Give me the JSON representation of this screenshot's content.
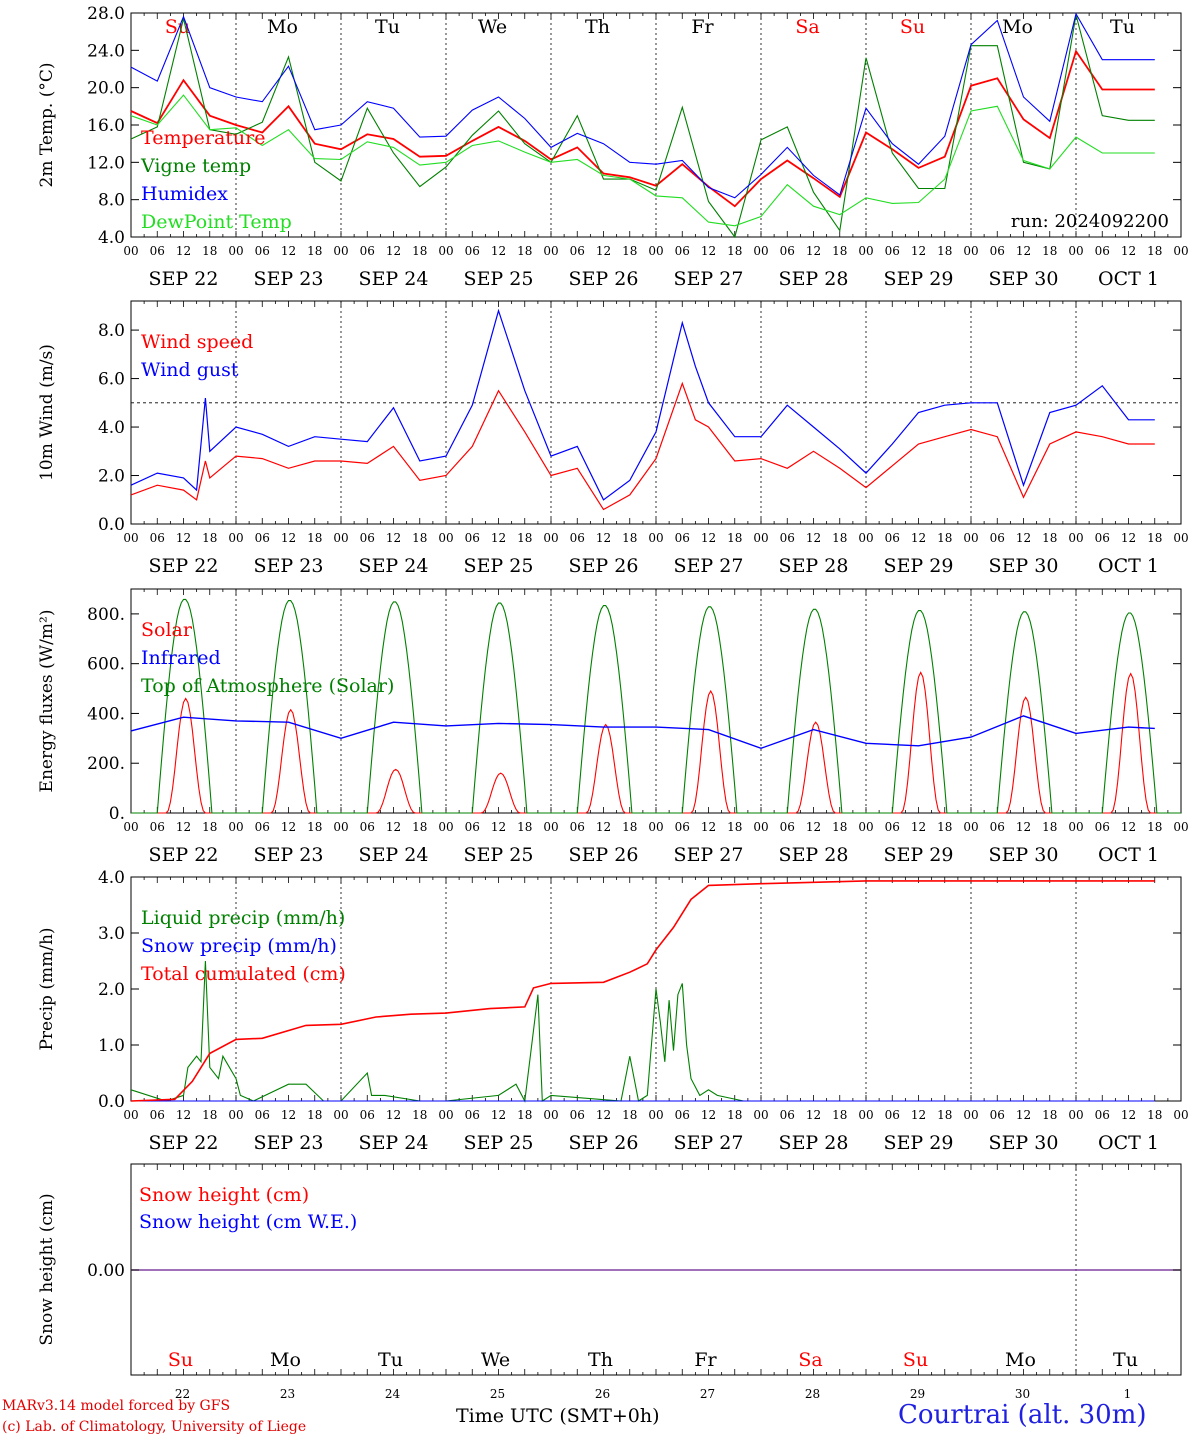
{
  "run_label": "run: 2024092200",
  "x_title": "Time UTC (SMT+0h)",
  "credits": [
    "MARv3.14 model forced by GFS",
    "(c) Lab. of Climatology, University of Liege"
  ],
  "station": "Courtrai (alt. 30m)",
  "colors": {
    "red": "#ff0000",
    "green": "#008000",
    "blue": "#0000ff",
    "light_green": "#22dd22",
    "purple": "#8040a0",
    "weekend": "#ff0000",
    "weekday": "#000000"
  },
  "time_axis": {
    "hour_ticks": [
      "00",
      "06",
      "12",
      "18"
    ],
    "dates": [
      "SEP 22",
      "SEP 23",
      "SEP 24",
      "SEP 25",
      "SEP 26",
      "SEP 27",
      "SEP 28",
      "SEP 29",
      "SEP 30",
      "OCT  1"
    ],
    "weekdays": [
      "Su",
      "Mo",
      "Tu",
      "We",
      "Th",
      "Fr",
      "Sa",
      "Su",
      "Mo",
      "Tu"
    ],
    "weekend_flags": [
      true,
      false,
      false,
      false,
      false,
      false,
      true,
      true,
      false,
      false
    ],
    "day_numbers": [
      "22",
      "23",
      "24",
      "25",
      "26",
      "27",
      "28",
      "29",
      "30",
      "1"
    ]
  },
  "chart_data": [
    {
      "type": "line",
      "ylabel": "2m Temp. (°C)",
      "ylim": [
        4,
        28
      ],
      "yticks": [
        "4.0",
        "8.0",
        "12.0",
        "16.0",
        "20.0",
        "24.0",
        "28.0"
      ],
      "x_hours": [
        0,
        6,
        12,
        18,
        24,
        30,
        36,
        42,
        48,
        54,
        60,
        66,
        72,
        78,
        84,
        90,
        96,
        102,
        108,
        114,
        120,
        126,
        132,
        138,
        144,
        150,
        156,
        162,
        168,
        174,
        180,
        186,
        192,
        198,
        204,
        210,
        216,
        222,
        228,
        234
      ],
      "series": [
        {
          "name": "Temperature",
          "color": "red",
          "values": [
            17.5,
            16.2,
            20.8,
            17.0,
            16.0,
            15.2,
            18.0,
            14.0,
            13.4,
            15.0,
            14.5,
            12.6,
            12.7,
            14.3,
            15.8,
            14.3,
            12.3,
            13.6,
            10.8,
            10.4,
            9.5,
            11.8,
            9.4,
            7.3,
            10.2,
            12.2,
            10.3,
            8.3,
            15.2,
            13.4,
            11.4,
            12.6,
            20.2,
            21.0,
            16.6,
            14.6,
            23.9,
            19.8,
            19.8,
            19.8
          ]
        },
        {
          "name": "Vigne temp",
          "color": "green",
          "values": [
            14.5,
            15.8,
            27.4,
            15.5,
            15.0,
            16.3,
            23.3,
            12.0,
            10.0,
            17.8,
            13.0,
            9.4,
            11.5,
            14.9,
            17.5,
            14.0,
            12.0,
            17.0,
            10.2,
            10.2,
            9.0,
            17.9,
            7.8,
            4.0,
            14.4,
            15.8,
            8.8,
            4.7,
            23.2,
            13.0,
            9.2,
            9.2,
            24.5,
            24.5,
            12.0,
            11.3,
            27.8,
            17.0,
            16.5,
            16.5
          ]
        },
        {
          "name": "Humidex",
          "color": "blue",
          "values": [
            22.2,
            20.7,
            27.6,
            20.0,
            19.0,
            18.5,
            22.3,
            15.5,
            16.0,
            18.5,
            17.8,
            14.7,
            14.8,
            17.6,
            19.0,
            16.7,
            13.6,
            15.1,
            14.0,
            12.0,
            11.8,
            12.2,
            9.3,
            8.2,
            10.7,
            13.6,
            10.6,
            8.5,
            17.8,
            14.0,
            11.8,
            14.8,
            24.6,
            27.2,
            19.0,
            16.4,
            27.9,
            23.0,
            23.0,
            23.0
          ]
        },
        {
          "name": "DewPoint Temp",
          "color": "light_green",
          "values": [
            17.0,
            16.0,
            19.2,
            15.5,
            15.7,
            13.8,
            15.5,
            12.4,
            12.3,
            14.2,
            13.6,
            11.7,
            12.0,
            13.8,
            14.3,
            13.1,
            12.0,
            12.3,
            10.6,
            10.2,
            8.4,
            8.2,
            5.6,
            5.2,
            6.2,
            9.6,
            7.3,
            6.4,
            8.2,
            7.6,
            7.7,
            10.2,
            17.5,
            18.0,
            12.2,
            11.3,
            14.7,
            13.0,
            13.0,
            13.0
          ]
        }
      ]
    },
    {
      "type": "line",
      "ylabel": "10m Wind (m/s)",
      "ylim": [
        0,
        9.2
      ],
      "yticks": [
        "0.0",
        "2.0",
        "4.0",
        "6.0",
        "8.0"
      ],
      "ref_line": 5,
      "x_hours": [
        0,
        6,
        12,
        15,
        17,
        18,
        24,
        30,
        36,
        42,
        48,
        54,
        60,
        66,
        72,
        78,
        84,
        90,
        96,
        102,
        108,
        114,
        120,
        126,
        129,
        132,
        138,
        144,
        150,
        156,
        162,
        168,
        174,
        180,
        186,
        192,
        198,
        204,
        210,
        216,
        222,
        228,
        234
      ],
      "series": [
        {
          "name": "Wind speed",
          "color": "red",
          "values": [
            1.2,
            1.6,
            1.4,
            1.0,
            2.6,
            1.9,
            2.8,
            2.7,
            2.3,
            2.6,
            2.6,
            2.5,
            3.2,
            1.8,
            2.0,
            3.2,
            5.5,
            3.8,
            2.0,
            2.3,
            0.6,
            1.2,
            2.7,
            5.8,
            4.3,
            4.0,
            2.6,
            2.7,
            2.3,
            3.0,
            2.3,
            1.5,
            2.4,
            3.3,
            3.6,
            3.9,
            3.6,
            1.1,
            3.3,
            3.8,
            3.6,
            3.3,
            3.3
          ]
        },
        {
          "name": "Wind gust",
          "color": "blue",
          "values": [
            1.6,
            2.1,
            1.9,
            1.4,
            5.2,
            3.0,
            4.0,
            3.7,
            3.2,
            3.6,
            3.5,
            3.4,
            4.8,
            2.6,
            2.8,
            4.9,
            8.8,
            5.5,
            2.8,
            3.2,
            1.0,
            1.8,
            3.8,
            8.3,
            6.5,
            5.0,
            3.6,
            3.6,
            4.9,
            4.0,
            3.1,
            2.1,
            3.3,
            4.6,
            4.9,
            5.0,
            5.0,
            1.6,
            4.6,
            4.9,
            5.7,
            4.3,
            4.3
          ]
        }
      ]
    },
    {
      "type": "line",
      "ylabel": "Energy fluxes (W/m²)",
      "ylim": [
        0,
        900
      ],
      "yticks": [
        "0.",
        "200.",
        "400.",
        "600.",
        "800."
      ],
      "diurnal_series": [
        {
          "name": "Solar",
          "color": "red",
          "peaks_by_day": [
            460,
            415,
            175,
            160,
            355,
            490,
            365,
            565,
            465,
            560
          ]
        },
        {
          "name": "Top of Atmosphere (Solar)",
          "color": "green",
          "peaks_by_day": [
            860,
            855,
            850,
            845,
            835,
            830,
            820,
            815,
            810,
            805
          ]
        }
      ],
      "infrared": {
        "name": "Infrared",
        "color": "blue",
        "x_hours": [
          0,
          12,
          24,
          36,
          48,
          60,
          72,
          84,
          96,
          108,
          120,
          132,
          144,
          156,
          168,
          180,
          192,
          204,
          216,
          228,
          234
        ],
        "values": [
          330,
          385,
          370,
          365,
          300,
          365,
          350,
          360,
          355,
          345,
          345,
          335,
          260,
          335,
          280,
          270,
          305,
          390,
          320,
          345,
          340
        ]
      }
    },
    {
      "type": "line",
      "ylabel": "Precip (mm/h)",
      "ylim": [
        0,
        4
      ],
      "yticks": [
        "0.0",
        "1.0",
        "2.0",
        "3.0",
        "4.0"
      ],
      "series": [
        {
          "name": "Liquid precip (mm/h)",
          "color": "green",
          "x_hours": [
            0,
            8,
            12,
            13,
            15,
            16,
            17,
            18,
            20,
            21,
            24,
            25,
            28,
            36,
            40,
            44,
            48,
            54,
            55,
            58,
            66,
            72,
            84,
            88,
            90,
            93,
            94,
            96,
            112,
            114,
            116,
            118,
            120,
            121,
            122,
            123,
            124,
            125,
            126,
            127,
            128,
            130,
            132,
            134,
            140,
            168,
            234
          ],
          "values": [
            0.2,
            0.0,
            0.1,
            0.6,
            0.8,
            0.7,
            2.5,
            0.6,
            0.4,
            0.8,
            0.4,
            0.1,
            0.0,
            0.3,
            0.3,
            0.0,
            0.0,
            0.5,
            0.1,
            0.1,
            0.0,
            0.0,
            0.1,
            0.3,
            0.0,
            1.9,
            0.0,
            0.1,
            0.0,
            0.8,
            0.0,
            0.1,
            2.0,
            1.4,
            0.7,
            1.8,
            0.9,
            1.9,
            2.1,
            1.0,
            0.4,
            0.1,
            0.2,
            0.1,
            0.0,
            0.0,
            0.0
          ]
        },
        {
          "name": "Snow precip (mm/h)",
          "color": "blue",
          "x_hours": [
            0,
            234
          ],
          "values": [
            0,
            0
          ]
        },
        {
          "name": "Total cumulated (cm)",
          "color": "red",
          "x_hours": [
            0,
            10,
            14,
            18,
            24,
            30,
            40,
            48,
            56,
            64,
            72,
            82,
            90,
            92,
            96,
            108,
            114,
            118,
            120,
            124,
            128,
            132,
            144,
            168,
            234
          ],
          "values": [
            0.0,
            0.03,
            0.35,
            0.85,
            1.1,
            1.12,
            1.35,
            1.37,
            1.5,
            1.55,
            1.57,
            1.65,
            1.68,
            2.02,
            2.1,
            2.12,
            2.3,
            2.45,
            2.7,
            3.1,
            3.6,
            3.85,
            3.88,
            3.93,
            3.93
          ]
        }
      ]
    },
    {
      "type": "line",
      "ylabel": "Snow height (cm)",
      "yticks": [
        "0.00"
      ],
      "series": [
        {
          "name": "Snow height (cm)",
          "color": "red",
          "values": [
            0,
            0
          ]
        },
        {
          "name": "Snow height (cm W.E.)",
          "color": "blue",
          "values": [
            0,
            0
          ]
        }
      ]
    }
  ]
}
